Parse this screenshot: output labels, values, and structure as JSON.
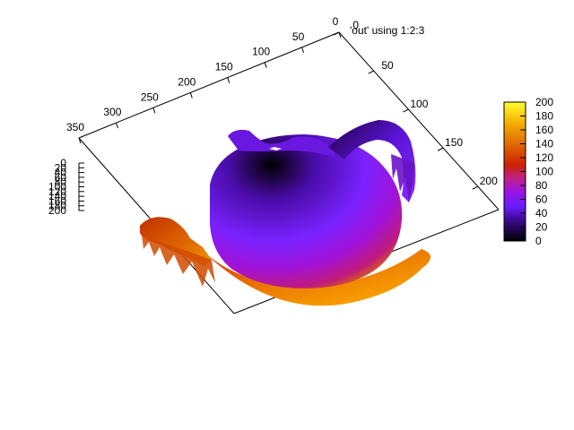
{
  "chart_data": {
    "type": "surface",
    "plot_title": "'out' using 1:2:3",
    "x_ticks": [
      "0",
      "50",
      "100",
      "150",
      "200"
    ],
    "y_ticks": [
      "0",
      "50",
      "100",
      "150",
      "200",
      "250",
      "300",
      "350"
    ],
    "z_ticks": [
      "0",
      "20",
      "40",
      "60",
      "80",
      "100",
      "120",
      "140",
      "160",
      "180",
      "200"
    ],
    "xlim": [
      0,
      230
    ],
    "ylim": [
      0,
      350
    ],
    "zlim": [
      0,
      200
    ],
    "series": [],
    "colorbar": {
      "ticks": [
        "0",
        "20",
        "40",
        "60",
        "80",
        "100",
        "120",
        "140",
        "160",
        "180",
        "200"
      ],
      "range": [
        0,
        200
      ],
      "palette": [
        "#000000",
        "#5a0fc8",
        "#8c28ff",
        "#a800e0",
        "#c40000",
        "#e86a00",
        "#ffd700",
        "#ffff30"
      ]
    },
    "description_colors": {
      "spout": "#e06a00",
      "lid": "#8a1eff",
      "handle": "#7d1cff"
    }
  }
}
